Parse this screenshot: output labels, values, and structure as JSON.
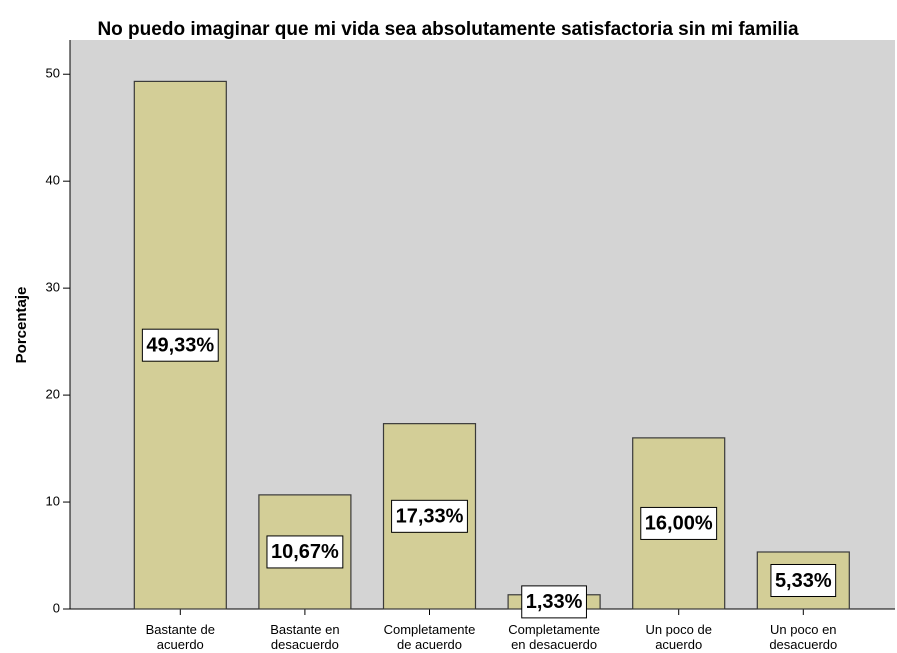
{
  "chart_data": {
    "type": "bar",
    "title": "No puedo imaginar que mi vida sea absolutamente satisfactoria sin mi familia",
    "y_label": "Porcentaje",
    "categories": [
      [
        "Bastante de",
        "acuerdo"
      ],
      [
        "Bastante en",
        "desacuerdo"
      ],
      [
        "Completamente",
        "de acuerdo"
      ],
      [
        "Completamente",
        "en desacuerdo"
      ],
      [
        "Un poco de",
        "acuerdo"
      ],
      [
        "Un poco en",
        "desacuerdo"
      ]
    ],
    "values": [
      49.33,
      10.67,
      17.33,
      1.33,
      16.0,
      5.33
    ],
    "value_labels": [
      "49,33%",
      "10,67%",
      "17,33%",
      "1,33%",
      "16,00%",
      "5,33%"
    ],
    "color": "#d3ce97",
    "ylim": [
      0,
      53.2
    ],
    "yticks": [
      0,
      10,
      20,
      30,
      40,
      50
    ]
  }
}
